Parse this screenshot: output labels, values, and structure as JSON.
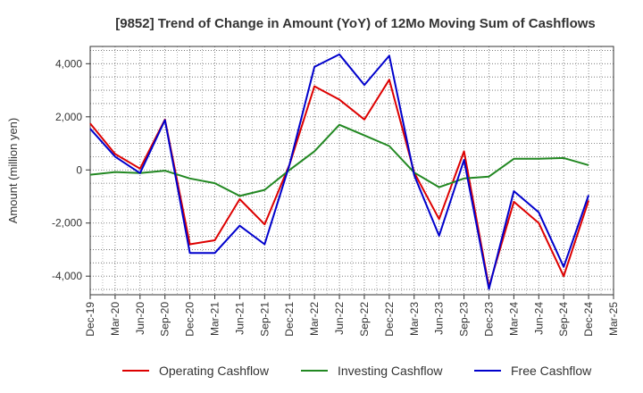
{
  "chart_data": {
    "type": "line",
    "title": "[9852]  Trend of Change in Amount (YoY) of 12Mo Moving Sum of Cashflows",
    "xlabel": "",
    "ylabel": "Amount (million yen)",
    "ylim": [
      -4700,
      4650
    ],
    "yticks": [
      4000,
      2000,
      0,
      -2000,
      -4000
    ],
    "ytick_labels": [
      "4,000",
      "2,000",
      "0",
      "-2,000",
      "-4,000"
    ],
    "categories": [
      "Dec-19",
      "Mar-20",
      "Jun-20",
      "Sep-20",
      "Dec-20",
      "Mar-21",
      "Jun-21",
      "Sep-21",
      "Dec-21",
      "Mar-22",
      "Jun-22",
      "Sep-22",
      "Dec-22",
      "Mar-23",
      "Jun-23",
      "Sep-23",
      "Dec-23",
      "Mar-24",
      "Jun-24",
      "Sep-24",
      "Dec-24",
      "Mar-25"
    ],
    "grid": true,
    "legend_position": "bottom",
    "series": [
      {
        "name": "Operating Cashflow",
        "color": "#dd0000",
        "values": [
          1750,
          600,
          50,
          1900,
          -2800,
          -2650,
          -1100,
          -2050,
          200,
          3150,
          2650,
          1900,
          3400,
          -100,
          -1850,
          700,
          -4400,
          -1200,
          -2000,
          -4000,
          -1150,
          null
        ]
      },
      {
        "name": "Investing Cashflow",
        "color": "#228822",
        "values": [
          -180,
          -80,
          -120,
          -30,
          -320,
          -500,
          -980,
          -750,
          0,
          700,
          1700,
          1300,
          900,
          -100,
          -650,
          -320,
          -250,
          420,
          420,
          450,
          180,
          null
        ]
      },
      {
        "name": "Free Cashflow",
        "color": "#0000cc",
        "values": [
          1550,
          500,
          -120,
          1880,
          -3130,
          -3130,
          -2100,
          -2800,
          200,
          3880,
          4350,
          3200,
          4300,
          -200,
          -2480,
          380,
          -4480,
          -800,
          -1600,
          -3650,
          -950,
          null
        ]
      }
    ]
  }
}
